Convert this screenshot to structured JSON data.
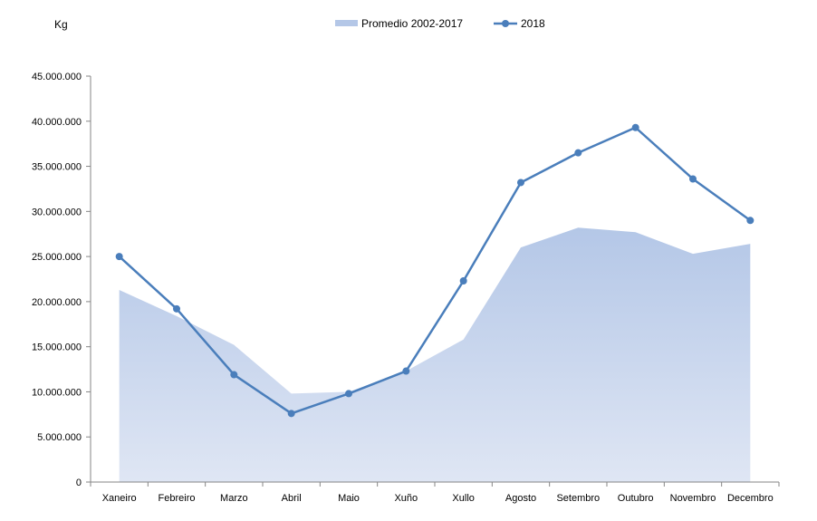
{
  "chart_data": {
    "type": "line",
    "categories": [
      "Xaneiro",
      "Febreiro",
      "Marzo",
      "Abril",
      "Maio",
      "Xuño",
      "Xullo",
      "Agosto",
      "Setembro",
      "Outubro",
      "Novembro",
      "Decembro"
    ],
    "series": [
      {
        "name": "Promedio 2002-2017",
        "kind": "area",
        "color": "#b4c7e7",
        "values": [
          21300000,
          18400000,
          15200000,
          9800000,
          10000000,
          12300000,
          15800000,
          26000000,
          28200000,
          27700000,
          25300000,
          26400000
        ]
      },
      {
        "name": "2018",
        "kind": "line",
        "color": "#4a7ebb",
        "values": [
          25000000,
          19200000,
          11900000,
          7600000,
          9800000,
          12300000,
          22300000,
          33200000,
          36500000,
          39300000,
          33600000,
          29000000
        ]
      }
    ],
    "title": "",
    "xlabel": "",
    "ylabel": "Kg",
    "ylim": [
      0,
      45000000
    ],
    "yticks": [
      0,
      5000000,
      10000000,
      15000000,
      20000000,
      25000000,
      30000000,
      35000000,
      40000000,
      45000000
    ],
    "ytick_labels": [
      "0",
      "5.000.000",
      "10.000.000",
      "15.000.000",
      "20.000.000",
      "25.000.000",
      "30.000.000",
      "35.000.000",
      "40.000.000",
      "45.000.000"
    ],
    "grid": false,
    "legend_position": "top"
  }
}
